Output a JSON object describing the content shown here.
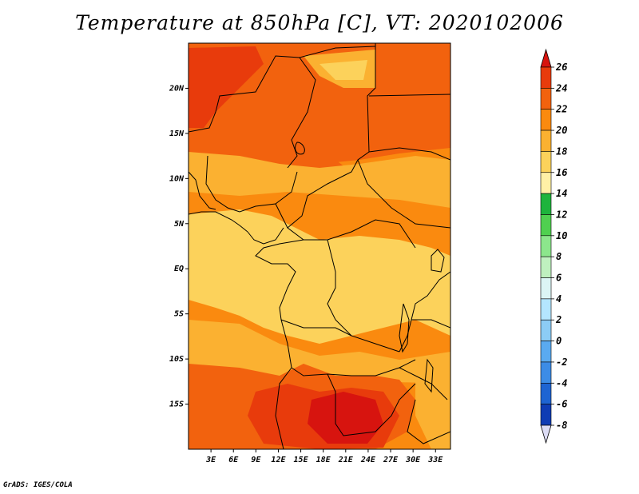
{
  "title": "Temperature at 850hPa [C], VT: 2020102006",
  "footer": "GrADS: IGES/COLA",
  "map": {
    "lon_range": [
      0,
      35
    ],
    "lat_range": [
      -20,
      25
    ],
    "lat_ticks": [
      {
        "value": 20,
        "label": "20N"
      },
      {
        "value": 15,
        "label": "15N"
      },
      {
        "value": 10,
        "label": "10N"
      },
      {
        "value": 5,
        "label": "5N"
      },
      {
        "value": 0,
        "label": "EQ"
      },
      {
        "value": -5,
        "label": "5S"
      },
      {
        "value": -10,
        "label": "10S"
      },
      {
        "value": -15,
        "label": "15S"
      }
    ],
    "lon_ticks": [
      {
        "value": 3,
        "label": "3E"
      },
      {
        "value": 6,
        "label": "6E"
      },
      {
        "value": 9,
        "label": "9E"
      },
      {
        "value": 12,
        "label": "12E"
      },
      {
        "value": 15,
        "label": "15E"
      },
      {
        "value": 18,
        "label": "18E"
      },
      {
        "value": 21,
        "label": "21E"
      },
      {
        "value": 24,
        "label": "24E"
      },
      {
        "value": 27,
        "label": "27E"
      },
      {
        "value": 30,
        "label": "30E"
      },
      {
        "value": 33,
        "label": "33E"
      }
    ]
  },
  "colorbar": {
    "levels": [
      "26",
      "24",
      "22",
      "20",
      "18",
      "16",
      "14",
      "12",
      "10",
      "8",
      "6",
      "4",
      "2",
      "0",
      "-2",
      "-4",
      "-6",
      "-8"
    ],
    "colors": [
      "#d7140f",
      "#e83b0c",
      "#f2620e",
      "#fa8a0f",
      "#fbb131",
      "#fcd25b",
      "#fff0a6",
      "#1eb43c",
      "#50d050",
      "#8ce68c",
      "#bff0bf",
      "#dcf5f5",
      "#b4e6ff",
      "#8cccf5",
      "#5aaaf0",
      "#3c8ce6",
      "#1e64d2",
      "#0f3cb4",
      "#0a1e96",
      "#000a64"
    ],
    "top_arrow_color": "#d7140f",
    "bottom_arrow_color": "#dcdcf5"
  },
  "colors": {
    "t26": "#d7140f",
    "t24": "#e83b0c",
    "t22": "#f2620e",
    "t20": "#fa8a0f",
    "t18": "#fbb131",
    "t16": "#fcd25b",
    "t14": "#fff0a6"
  }
}
